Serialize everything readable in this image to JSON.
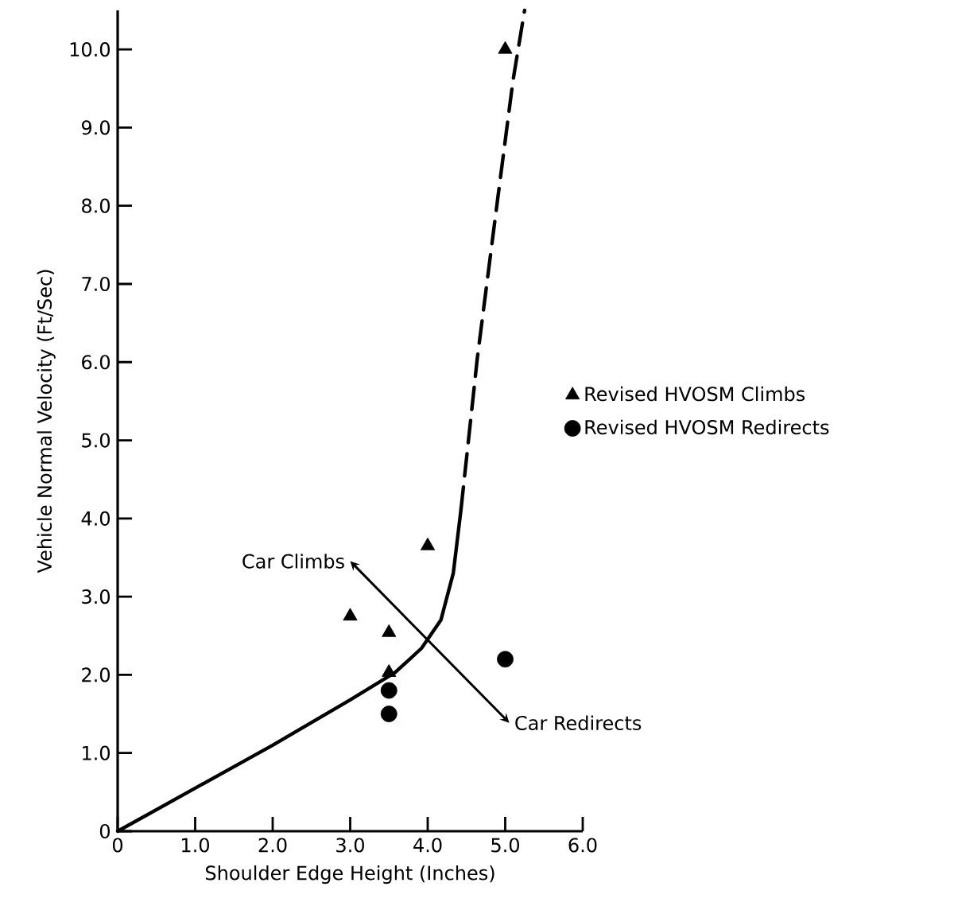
{
  "chart_data": {
    "type": "line",
    "xlabel": "Shoulder Edge Height (Inches)",
    "ylabel": "Vehicle Normal Velocity (Ft/Sec)",
    "xlim": [
      0,
      6
    ],
    "ylim": [
      0,
      10.5
    ],
    "xticks": [
      0,
      {
        "value": 1,
        "label": "1.0"
      },
      {
        "value": 2,
        "label": "2.0"
      },
      {
        "value": 3,
        "label": "3.0"
      },
      {
        "value": 4,
        "label": "4.0"
      },
      {
        "value": 5,
        "label": "5.0"
      },
      {
        "value": 6,
        "label": "6.0"
      }
    ],
    "yticks": [
      0,
      {
        "value": 1,
        "label": "1.0"
      },
      {
        "value": 2,
        "label": "2.0"
      },
      {
        "value": 3,
        "label": "3.0"
      },
      {
        "value": 4,
        "label": "4.0"
      },
      {
        "value": 5,
        "label": "5.0"
      },
      {
        "value": 6,
        "label": "6.0"
      },
      {
        "value": 7,
        "label": "7.0"
      },
      {
        "value": 8,
        "label": "8.0"
      },
      {
        "value": 9,
        "label": "9.0"
      },
      {
        "value": 10,
        "label": "10.0"
      }
    ],
    "grid": false,
    "legend": "right",
    "series": [
      {
        "line_style": "solid",
        "color": "#000000",
        "x": [
          0,
          1,
          2,
          3,
          3.58,
          3.92,
          4.17,
          4.33,
          4.43
        ],
        "values": [
          0,
          0.55,
          1.1,
          1.68,
          2.03,
          2.34,
          2.7,
          3.3,
          4.12
        ]
      },
      {
        "line_style": "dashed",
        "color": "#000000",
        "x": [
          4.43,
          4.64,
          4.89,
          5.1,
          5.25
        ],
        "values": [
          4.12,
          6.05,
          7.99,
          9.6,
          10.5
        ]
      },
      {
        "type": "scatter",
        "name": "Revised HVOSM Climbs",
        "marker": "triangle",
        "color": "#000000",
        "x": [
          3.0,
          3.5,
          3.5,
          4.0,
          5.0
        ],
        "values": [
          2.75,
          2.54,
          2.03,
          3.65,
          10.0
        ]
      },
      {
        "type": "scatter",
        "name": "Revised HVOSM Redirects",
        "marker": "circle",
        "color": "#000000",
        "x": [
          3.5,
          3.5,
          5.0
        ],
        "values": [
          1.8,
          1.5,
          2.2
        ]
      }
    ],
    "annotations": [
      "Car Climbs",
      "Car Redirects"
    ]
  }
}
